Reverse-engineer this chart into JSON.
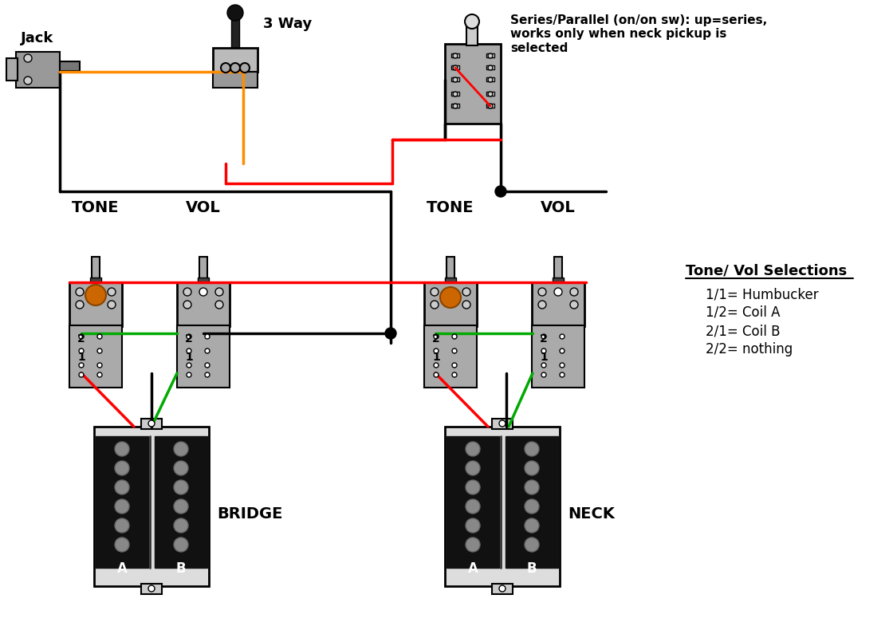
{
  "bg_color": "#ffffff",
  "text_color": "#000000",
  "jack_label": "Jack",
  "way3_label": "3 Way",
  "bridge_label": "BRIDGE",
  "neck_label": "NECK",
  "tone_label": "TONE",
  "vol_label": "VOL",
  "series_parallel_text": "Series/Parallel (on/on sw): up=series,\nworks only when neck pickup is\nselected",
  "legend_title": "Tone/ Vol Selections",
  "legend_items": [
    "1/1= Humbucker",
    "1/2= Coil A",
    "2/1= Coil B",
    "2/2= nothing"
  ],
  "wire_colors": {
    "orange": "#FF8C00",
    "red": "#FF0000",
    "green": "#00AA00",
    "black": "#000000"
  }
}
